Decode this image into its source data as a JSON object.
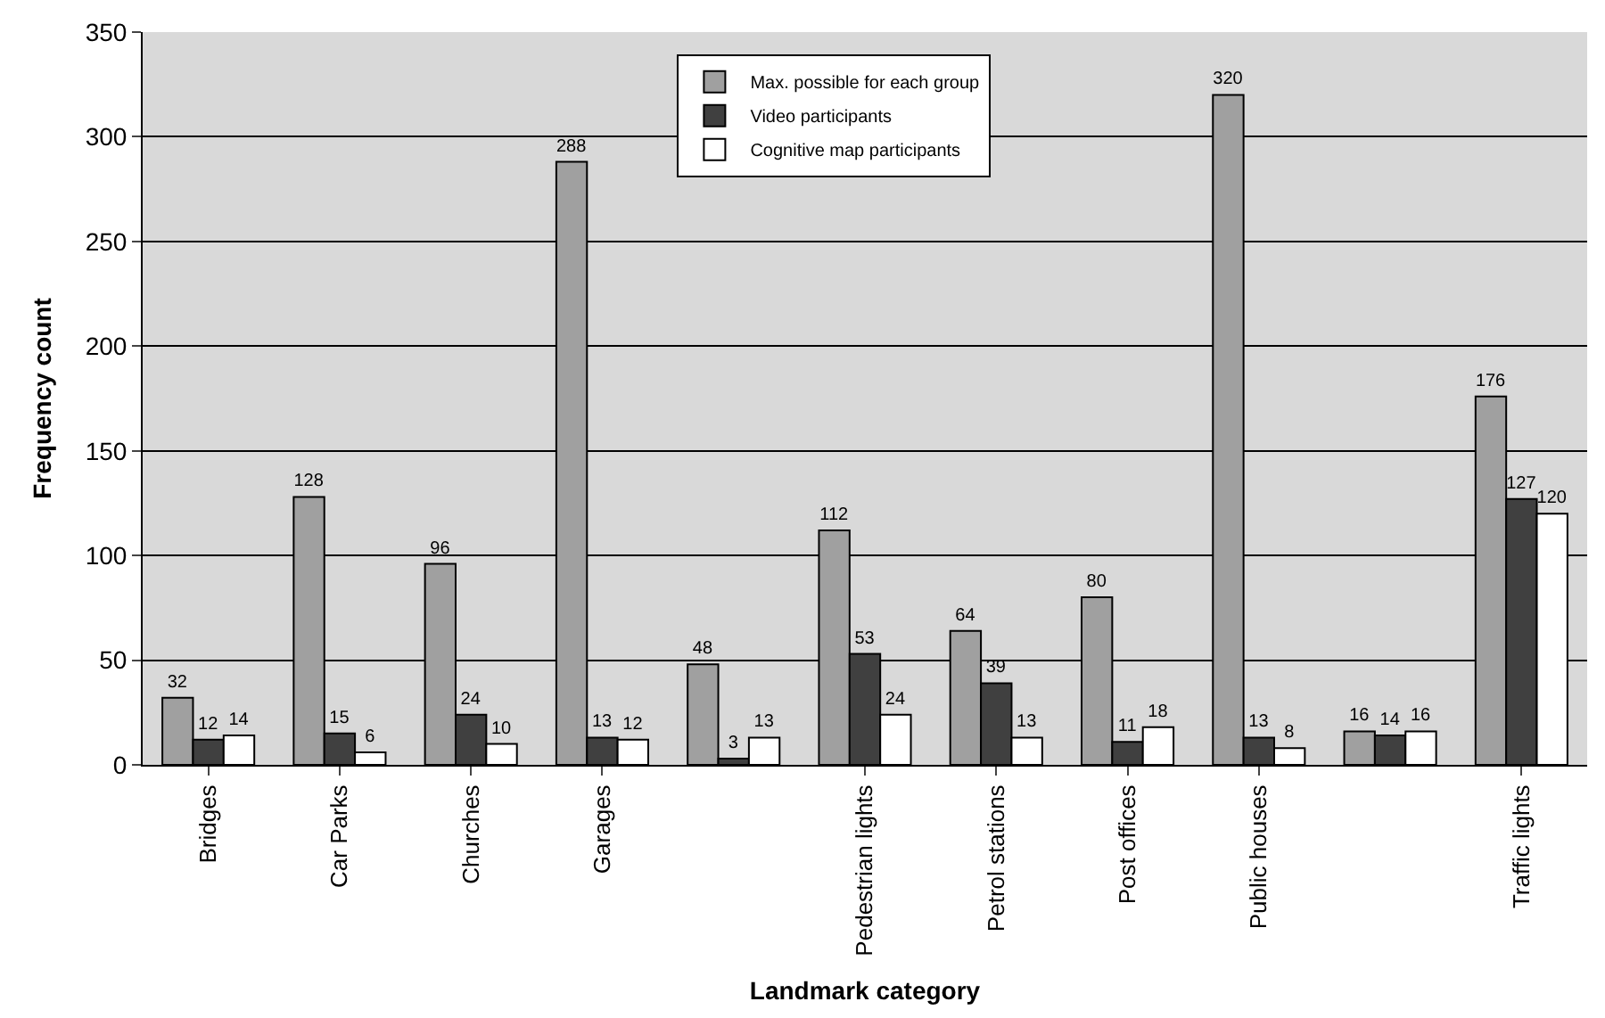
{
  "chart_data": {
    "type": "bar",
    "xlabel": "Landmark category",
    "ylabel": "Frequency count",
    "categories": [
      "Bridges",
      "Car Parks",
      "Churches",
      "Garages",
      null,
      "Pedestrian lights",
      "Petrol stations",
      "Post offices",
      "Public houses",
      null,
      "Traffic lights"
    ],
    "series": [
      {
        "name": "Max. possible for each group",
        "color": "#a0a0a0",
        "values": [
          32,
          128,
          96,
          288,
          48,
          112,
          64,
          80,
          320,
          16,
          176
        ]
      },
      {
        "name": "Video participants",
        "color": "#404040",
        "values": [
          12,
          15,
          24,
          13,
          3,
          53,
          39,
          11,
          13,
          14,
          127
        ]
      },
      {
        "name": "Cognitive map participants",
        "color": "#ffffff",
        "values": [
          14,
          6,
          10,
          12,
          13,
          24,
          13,
          18,
          8,
          16,
          120
        ]
      }
    ],
    "ylim": [
      0,
      350
    ],
    "yticks": [
      0,
      50,
      100,
      150,
      200,
      250,
      300,
      350
    ],
    "grid": "y",
    "legend": "top",
    "data_labels": true
  }
}
